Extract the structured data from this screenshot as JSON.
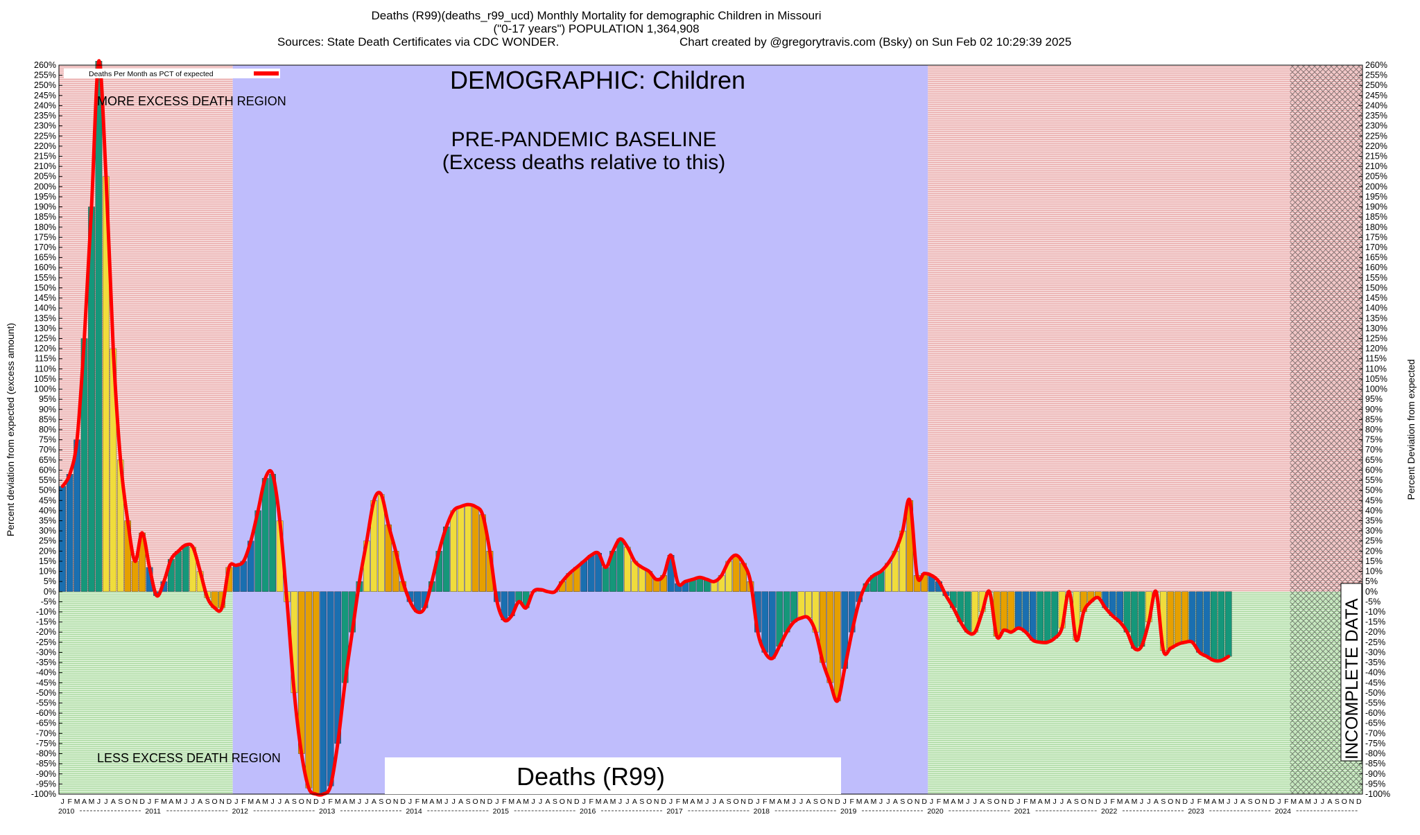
{
  "header": {
    "line1": "Deaths (R99)(deaths_r99_ucd) Monthly Mortality for demographic Children in Missouri",
    "line2": "(\"0-17 years\") POPULATION 1,364,908",
    "line3a": "Sources: State Death Certificates via CDC WONDER.",
    "line3b": "Chart created by @gregorytravis.com (Bsky) on Sun Feb 02 10:29:39 2025"
  },
  "annotations": {
    "demographic": "DEMOGRAPHIC: Children",
    "baseline1": "PRE-PANDEMIC BASELINE",
    "baseline2": "(Excess deaths relative to this)",
    "more_excess": "MORE EXCESS DEATH REGION",
    "less_excess": "LESS EXCESS DEATH REGION",
    "cause_box": "Deaths (R99)",
    "incomplete": "INCOMPLETE DATA"
  },
  "colors": {
    "pink_region": "#f0c8c8",
    "green_region": "#c8e8c0",
    "baseline_region": "#bfbdfc",
    "line": "#ff0000",
    "bar_palette": [
      "#1a6fb0",
      "#15977a",
      "#f0dc3c",
      "#e6a000"
    ]
  },
  "chart_data": {
    "type": "bar",
    "title": "Deaths (R99)(deaths_r99_ucd) Monthly Mortality for demographic Children in Missouri",
    "subtitle": "(\"0-17 years\") POPULATION 1,364,908",
    "ylabel_left": "Percent deviation from expected (excess amount)",
    "ylabel_right": "Percent Deviation from expected",
    "legend": "Deaths Per Month as PCT of expected",
    "legend_position": "top-left",
    "ylim": [
      -100,
      260
    ],
    "ytick_step": 5,
    "ytick_suffix": "%",
    "grid": false,
    "month_letters": [
      "J",
      "F",
      "M",
      "A",
      "M",
      "J",
      "J",
      "A",
      "S",
      "O",
      "N",
      "D"
    ],
    "years": [
      "2010",
      "2011",
      "2012",
      "2013",
      "2014",
      "2015",
      "2016",
      "2017",
      "2018",
      "2019",
      "2020",
      "2021",
      "2022",
      "2023",
      "2024"
    ],
    "start": "2010-01",
    "regions": [
      {
        "from": "2010-01",
        "to": "2011-12",
        "label": "more/less excess"
      },
      {
        "from": "2012-01",
        "to": "2019-12",
        "label": "PRE-PANDEMIC BASELINE"
      },
      {
        "from": "2020-01",
        "to": "2024-02",
        "label": "more/less excess"
      },
      {
        "from": "2024-03",
        "to": "2024-12",
        "label": "INCOMPLETE DATA"
      }
    ],
    "values": [
      52,
      58,
      75,
      125,
      190,
      262,
      205,
      120,
      65,
      35,
      15,
      29,
      12,
      -2,
      5,
      16,
      20,
      23,
      22,
      10,
      -3,
      -8,
      -8,
      12,
      13,
      15,
      25,
      40,
      56,
      58,
      35,
      -5,
      -50,
      -80,
      -97,
      -100,
      -100,
      -96,
      -75,
      -45,
      -20,
      5,
      25,
      45,
      48,
      33,
      20,
      5,
      -5,
      -10,
      -8,
      5,
      20,
      32,
      40,
      42,
      43,
      42,
      38,
      20,
      -5,
      -14,
      -12,
      -5,
      -8,
      0,
      1,
      0,
      0,
      5,
      9,
      12,
      15,
      18,
      19,
      12,
      20,
      26,
      22,
      15,
      12,
      10,
      6,
      8,
      18,
      4,
      5,
      6,
      7,
      6,
      5,
      8,
      15,
      18,
      14,
      5,
      -20,
      -30,
      -33,
      -27,
      -20,
      -15,
      -13,
      -13,
      -20,
      -35,
      -45,
      -54,
      -38,
      -20,
      -5,
      4,
      8,
      10,
      14,
      20,
      30,
      45,
      8,
      9,
      8,
      5,
      -2,
      -8,
      -15,
      -20,
      -20,
      -10,
      0,
      -22,
      -19,
      -20,
      -18,
      -20,
      -24,
      -25,
      -25,
      -23,
      -18,
      0,
      -24,
      -10,
      -5,
      -3,
      -8,
      -12,
      -15,
      -20,
      -28,
      -27,
      -15,
      0,
      -29,
      -28,
      -26,
      -25,
      -25,
      -30,
      -32,
      -34,
      -34,
      -32
    ]
  }
}
